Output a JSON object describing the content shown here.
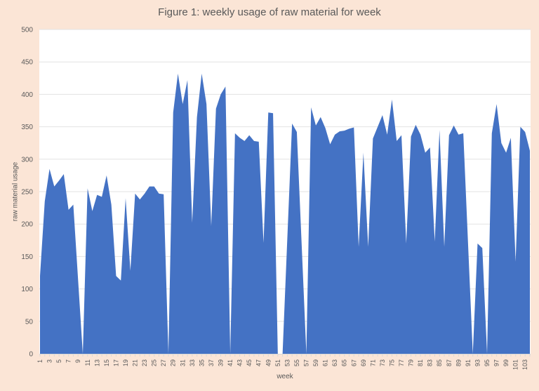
{
  "chart_data": {
    "type": "area",
    "title": "Figure 1: weekly usage of raw material for week",
    "xlabel": "week",
    "ylabel": "raw material usage",
    "ylim": [
      0,
      500
    ],
    "yticks": [
      0,
      50,
      100,
      150,
      200,
      250,
      300,
      350,
      400,
      450,
      500
    ],
    "xtick_labels": [
      "1",
      "3",
      "5",
      "7",
      "9",
      "11",
      "13",
      "15",
      "17",
      "19",
      "21",
      "23",
      "25",
      "27",
      "29",
      "31",
      "33",
      "35",
      "37",
      "39",
      "41",
      "43",
      "45",
      "47",
      "49",
      "51",
      "53",
      "55",
      "57",
      "59",
      "61",
      "63",
      "65",
      "67",
      "69",
      "71",
      "73",
      "75",
      "77",
      "79",
      "81",
      "83",
      "85",
      "87",
      "89",
      "91",
      "93",
      "95",
      "97",
      "99",
      "101",
      "103"
    ],
    "grid": true,
    "legend": "none",
    "fill_color": "#4472C4",
    "background_color": "#FBE5D6",
    "plot_background": "#FFFFFF",
    "x": [
      1,
      2,
      3,
      4,
      5,
      6,
      7,
      8,
      9,
      10,
      11,
      12,
      13,
      14,
      15,
      16,
      17,
      18,
      19,
      20,
      21,
      22,
      23,
      24,
      25,
      26,
      27,
      28,
      29,
      30,
      31,
      32,
      33,
      34,
      35,
      36,
      37,
      38,
      39,
      40,
      41,
      42,
      43,
      44,
      45,
      46,
      47,
      48,
      49,
      50,
      51,
      52,
      53,
      54,
      55,
      56,
      57,
      58,
      59,
      60,
      61,
      62,
      63,
      64,
      65,
      66,
      67,
      68,
      69,
      70,
      71,
      72,
      73,
      74,
      75,
      76,
      77,
      78,
      79,
      80,
      81,
      82,
      83,
      84,
      85,
      86,
      87,
      88,
      89,
      90,
      91,
      92,
      93,
      94,
      95,
      96,
      97,
      98,
      99,
      100,
      101,
      102,
      103,
      104
    ],
    "series": [
      {
        "name": "raw material usage",
        "values": [
          120,
          235,
          285,
          258,
          267,
          277,
          222,
          230,
          115,
          0,
          255,
          220,
          245,
          242,
          275,
          230,
          120,
          113,
          240,
          128,
          247,
          238,
          247,
          258,
          258,
          247,
          246,
          0,
          372,
          432,
          385,
          422,
          202,
          365,
          432,
          385,
          197,
          378,
          400,
          412,
          0,
          340,
          333,
          328,
          337,
          328,
          327,
          171,
          372,
          371,
          0,
          0,
          178,
          355,
          342,
          171,
          0,
          380,
          352,
          365,
          348,
          323,
          338,
          343,
          344,
          347,
          349,
          165,
          310,
          165,
          332,
          350,
          368,
          338,
          392,
          328,
          337,
          170,
          335,
          353,
          338,
          310,
          318,
          173,
          345,
          165,
          337,
          352,
          338,
          340,
          170,
          0,
          170,
          163,
          0,
          340,
          385,
          325,
          310,
          333,
          142,
          350,
          342,
          313
        ]
      }
    ]
  }
}
